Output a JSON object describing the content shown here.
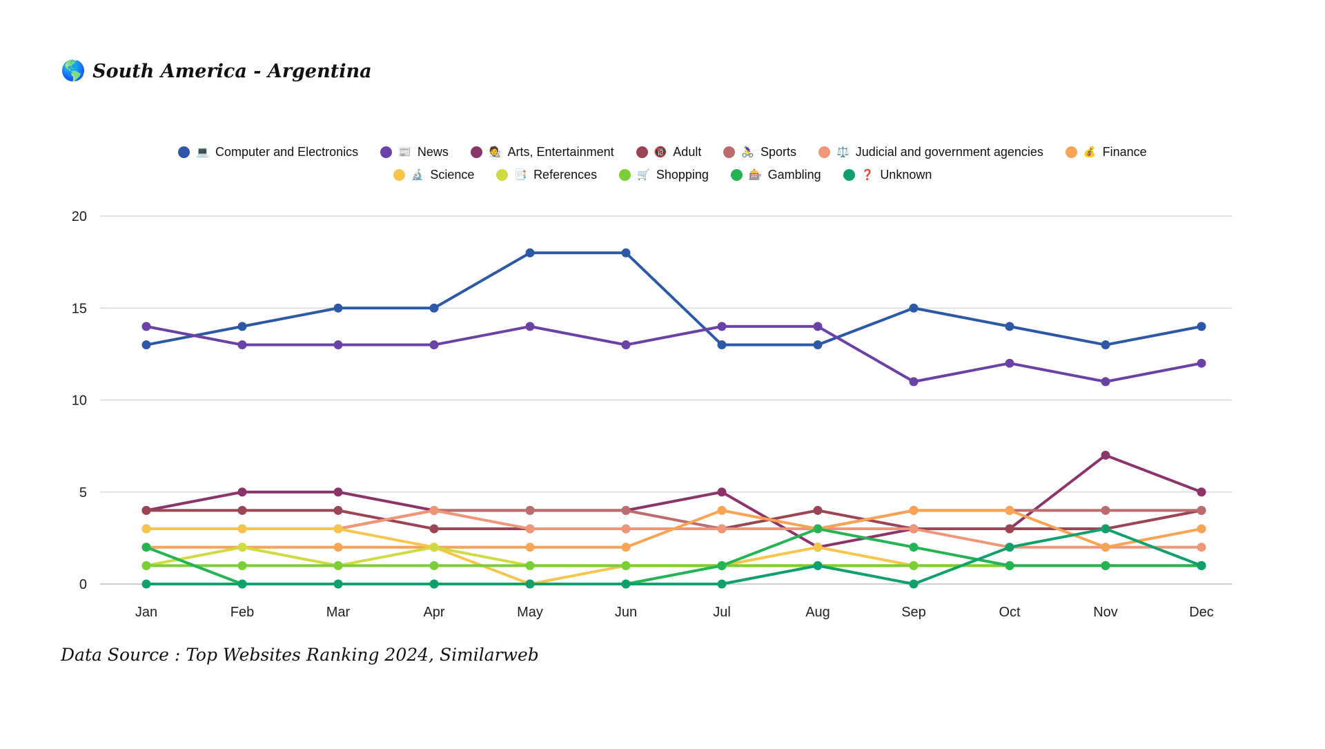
{
  "title": {
    "emoji": "🌎",
    "text": "South America - Argentina"
  },
  "source_note": "Data Source : Top Websites Ranking 2024, Similarweb",
  "chart_data": {
    "type": "line",
    "title": "South America - Argentina",
    "categories": [
      "Jan",
      "Feb",
      "Mar",
      "Apr",
      "May",
      "Jun",
      "Jul",
      "Aug",
      "Sep",
      "Oct",
      "Nov",
      "Dec"
    ],
    "xlabel": "",
    "ylabel": "",
    "ylim": [
      0,
      20
    ],
    "yticks": [
      0,
      5,
      10,
      15,
      20
    ],
    "grid": true,
    "legend_position": "top",
    "series": [
      {
        "name": "Computer and Electronics",
        "emoji": "💻",
        "color": "#2c58a6",
        "values": [
          13,
          14,
          15,
          15,
          18,
          18,
          13,
          13,
          15,
          14,
          13,
          14
        ]
      },
      {
        "name": "News",
        "emoji": "📰",
        "color": "#6a41a5",
        "values": [
          14,
          13,
          13,
          13,
          14,
          13,
          14,
          14,
          11,
          12,
          11,
          12
        ]
      },
      {
        "name": "Arts, Entertainment",
        "emoji": "🧑‍🎨",
        "color": "#8a3468",
        "values": [
          4,
          5,
          5,
          4,
          4,
          4,
          5,
          2,
          3,
          3,
          7,
          5
        ]
      },
      {
        "name": "Adult",
        "emoji": "🔞",
        "color": "#9b4454",
        "values": [
          4,
          4,
          4,
          3,
          3,
          3,
          3,
          4,
          3,
          3,
          3,
          4
        ]
      },
      {
        "name": "Sports",
        "emoji": "🚴‍♀️",
        "color": "#bc6b6e",
        "values": [
          3,
          3,
          3,
          4,
          4,
          4,
          3,
          3,
          4,
          4,
          4,
          4
        ]
      },
      {
        "name": "Judicial and government agencies",
        "emoji": "⚖️",
        "color": "#ef9678",
        "values": [
          3,
          3,
          3,
          4,
          3,
          3,
          3,
          3,
          3,
          2,
          2,
          2
        ]
      },
      {
        "name": "Finance",
        "emoji": "💰",
        "color": "#f9a354",
        "values": [
          2,
          2,
          2,
          2,
          2,
          2,
          4,
          3,
          4,
          4,
          2,
          3
        ]
      },
      {
        "name": "Science",
        "emoji": "🔬",
        "color": "#f5c64b",
        "values": [
          3,
          3,
          3,
          2,
          0,
          1,
          1,
          2,
          1,
          1,
          1,
          1
        ]
      },
      {
        "name": "References",
        "emoji": "📑",
        "color": "#d0da42",
        "values": [
          1,
          2,
          1,
          2,
          1,
          1,
          1,
          1,
          1,
          1,
          1,
          1
        ]
      },
      {
        "name": "Shopping",
        "emoji": "🛒",
        "color": "#7bce36",
        "values": [
          1,
          1,
          1,
          1,
          1,
          1,
          1,
          1,
          1,
          1,
          1,
          1
        ]
      },
      {
        "name": "Gambling",
        "emoji": "🎰",
        "color": "#24b453",
        "values": [
          2,
          0,
          0,
          0,
          0,
          0,
          1,
          3,
          2,
          1,
          1,
          1
        ]
      },
      {
        "name": "Unknown",
        "emoji": "❓",
        "color": "#10a06c",
        "values": [
          0,
          0,
          0,
          0,
          0,
          0,
          0,
          1,
          0,
          2,
          3,
          1
        ]
      }
    ],
    "legend_rows": [
      [
        0,
        1,
        2,
        3,
        4,
        5,
        6
      ],
      [
        7,
        8,
        9,
        10,
        11
      ]
    ]
  }
}
